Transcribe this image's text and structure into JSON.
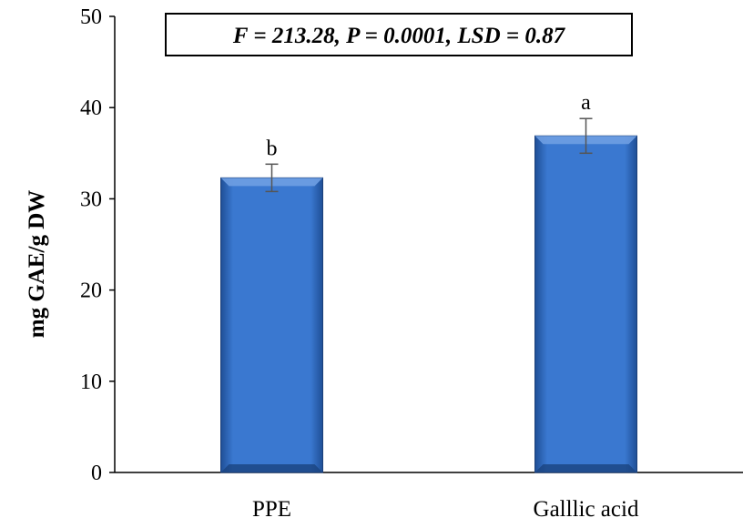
{
  "chart_data": {
    "type": "bar",
    "categories": [
      "PPE",
      "Galllic acid"
    ],
    "values": [
      32.3,
      36.9
    ],
    "error": [
      1.5,
      1.9
    ],
    "significance_labels": [
      "b",
      "a"
    ],
    "title": "",
    "annotation": "F = 213.28, P = 0.0001, LSD = 0.87",
    "xlabel": "",
    "ylabel": "mg GAE/g DW",
    "ylim": [
      0,
      50
    ],
    "yticks": [
      0,
      10,
      20,
      30,
      40,
      50
    ],
    "grid": false,
    "bar_color": "#3a78d0"
  }
}
